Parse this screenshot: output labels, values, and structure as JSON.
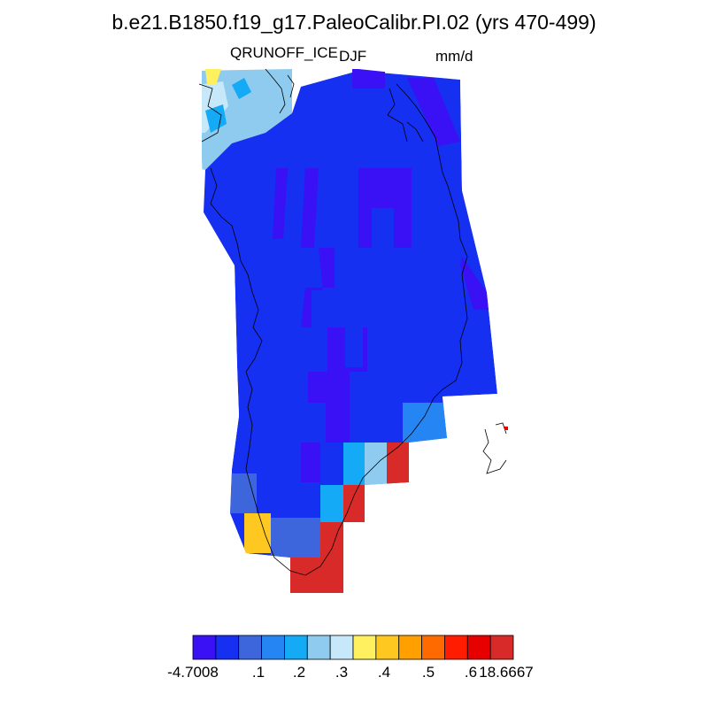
{
  "title": "b.e21.B1850.f19_g17.PaleoCalibr.PI.02 (yrs 470-499)",
  "variable": "QRUNOFF_ICE",
  "season": "DJF",
  "units": "mm/d",
  "colors": {
    "c1": "#3a10f5",
    "c2": "#1530f0",
    "c3": "#3d66dc",
    "c4": "#2585f2",
    "c5": "#15aaf5",
    "c6": "#8fcbee",
    "c7": "#c7e8f8",
    "c8": "#fff060",
    "c9": "#ffc820",
    "c10": "#ffa000",
    "c11": "#ff6a00",
    "c12": "#ff1c00",
    "c13": "#e60000",
    "c14": "#d92a2a"
  },
  "colorbar": {
    "colors": [
      "#3a10f5",
      "#1530f0",
      "#3d66dc",
      "#2585f2",
      "#15aaf5",
      "#8fcbee",
      "#c7e8f8",
      "#fff060",
      "#ffc820",
      "#ffa000",
      "#ff6a00",
      "#ff1c00",
      "#e60000",
      "#d92a2a"
    ],
    "labels": [
      "-4.7008",
      ".1",
      ".2",
      ".3",
      ".4",
      ".5",
      ".6",
      "18.6667"
    ]
  }
}
